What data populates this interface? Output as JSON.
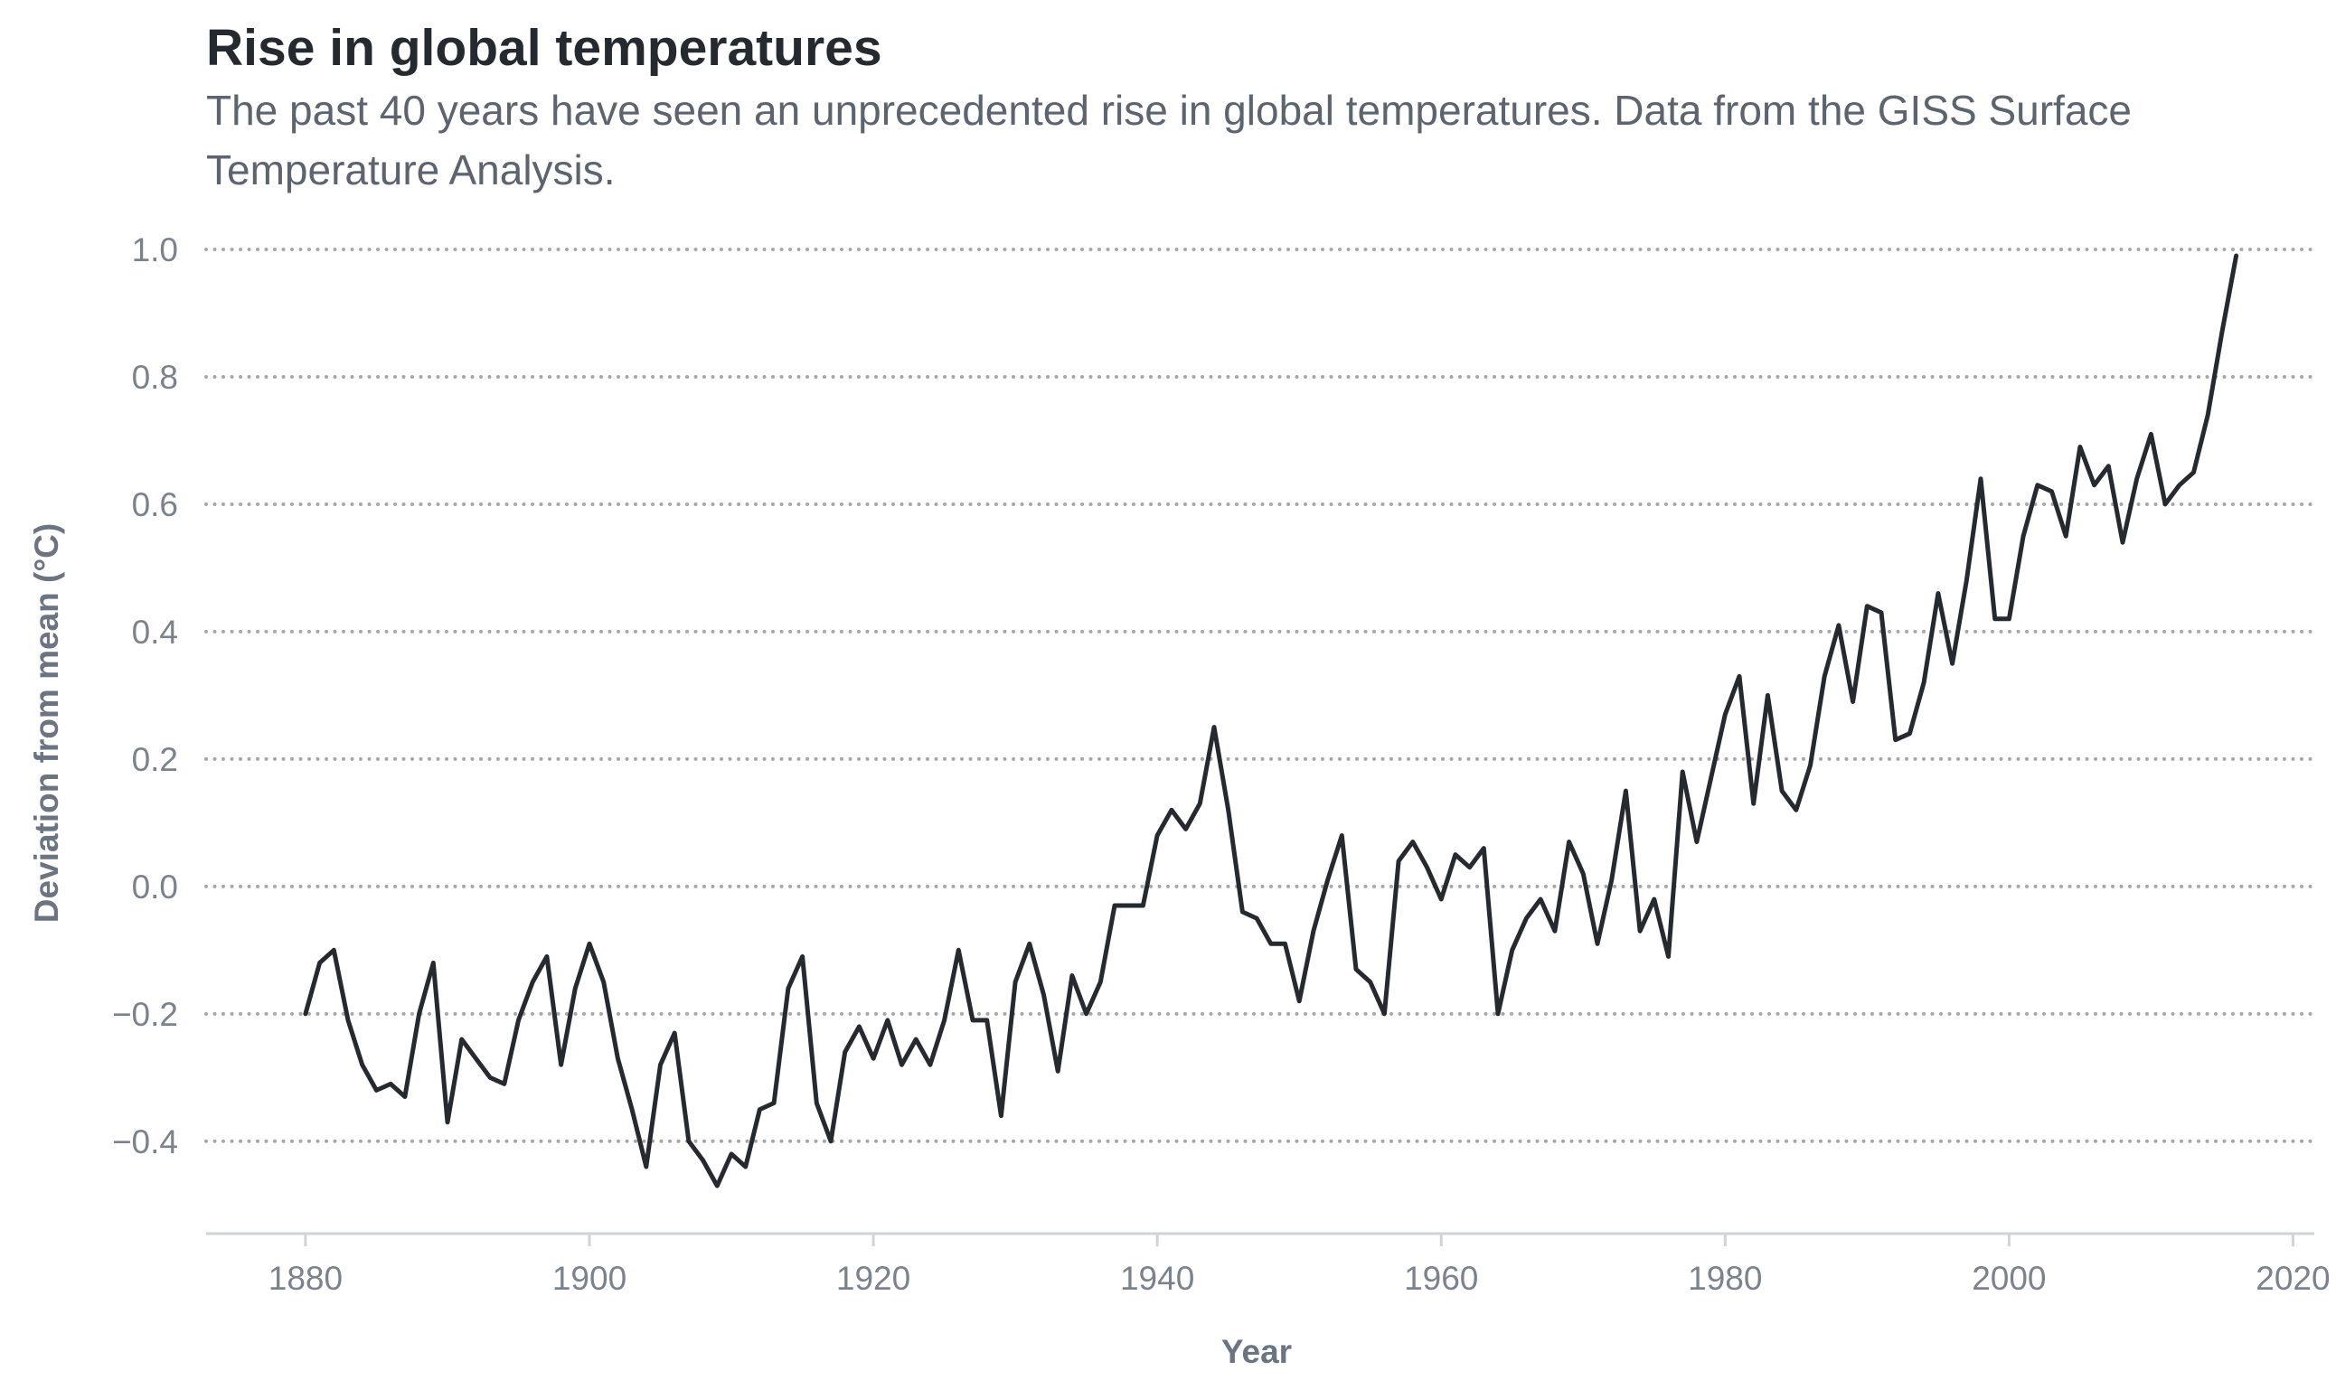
{
  "colors": {
    "line": "#252a31",
    "title": "#252a31",
    "subtitle": "#5c6470",
    "tick": "#7a828e",
    "axis_label": "#6b7480",
    "grid": "#a7a7a7",
    "axis": "#cfd4d8"
  },
  "chart_data": {
    "type": "line",
    "title": "Rise in global temperatures",
    "subtitle_lines": [
      "The past 40 years have seen an unprecedented rise in global temperatures. Data from the GISS Surface",
      "Temperature Analysis."
    ],
    "xlabel": "Year",
    "ylabel": "Deviation from mean (°C)",
    "xlim": [
      1873,
      2021.5
    ],
    "ylim": [
      -0.545,
      1.0
    ],
    "x_ticks": [
      1880,
      1900,
      1920,
      1940,
      1960,
      1980,
      2000,
      2020
    ],
    "x_tick_labels": [
      "1880",
      "1900",
      "1920",
      "1940",
      "1960",
      "1980",
      "2000",
      "2020"
    ],
    "y_ticks": [
      1.0,
      0.8,
      0.6,
      0.4,
      0.2,
      0.0,
      -0.2,
      -0.4
    ],
    "y_tick_labels": [
      "1.0",
      "0.8",
      "0.6",
      "0.4",
      "0.2",
      "0.0",
      "−0.2",
      "−0.4"
    ],
    "grid": "horizontal dotted",
    "x": [
      1880,
      1881,
      1882,
      1883,
      1884,
      1885,
      1886,
      1887,
      1888,
      1889,
      1890,
      1891,
      1892,
      1893,
      1894,
      1895,
      1896,
      1897,
      1898,
      1899,
      1900,
      1901,
      1902,
      1903,
      1904,
      1905,
      1906,
      1907,
      1908,
      1909,
      1910,
      1911,
      1912,
      1913,
      1914,
      1915,
      1916,
      1917,
      1918,
      1919,
      1920,
      1921,
      1922,
      1923,
      1924,
      1925,
      1926,
      1927,
      1928,
      1929,
      1930,
      1931,
      1932,
      1933,
      1934,
      1935,
      1936,
      1937,
      1938,
      1939,
      1940,
      1941,
      1942,
      1943,
      1944,
      1945,
      1946,
      1947,
      1948,
      1949,
      1950,
      1951,
      1952,
      1953,
      1954,
      1955,
      1956,
      1957,
      1958,
      1959,
      1960,
      1961,
      1962,
      1963,
      1964,
      1965,
      1966,
      1967,
      1968,
      1969,
      1970,
      1971,
      1972,
      1973,
      1974,
      1975,
      1976,
      1977,
      1978,
      1979,
      1980,
      1981,
      1982,
      1983,
      1984,
      1985,
      1986,
      1987,
      1988,
      1989,
      1990,
      1991,
      1992,
      1993,
      1994,
      1995,
      1996,
      1997,
      1998,
      1999,
      2000,
      2001,
      2002,
      2003,
      2004,
      2005,
      2006,
      2007,
      2008,
      2009,
      2010,
      2011,
      2012,
      2013,
      2014,
      2015,
      2016
    ],
    "y": [
      -0.2,
      -0.12,
      -0.1,
      -0.21,
      -0.28,
      -0.32,
      -0.31,
      -0.33,
      -0.2,
      -0.12,
      -0.37,
      -0.24,
      -0.27,
      -0.3,
      -0.31,
      -0.21,
      -0.15,
      -0.11,
      -0.28,
      -0.16,
      -0.09,
      -0.15,
      -0.27,
      -0.35,
      -0.44,
      -0.28,
      -0.23,
      -0.4,
      -0.43,
      -0.47,
      -0.42,
      -0.44,
      -0.35,
      -0.34,
      -0.16,
      -0.11,
      -0.34,
      -0.4,
      -0.26,
      -0.22,
      -0.27,
      -0.21,
      -0.28,
      -0.24,
      -0.28,
      -0.21,
      -0.1,
      -0.21,
      -0.21,
      -0.36,
      -0.15,
      -0.09,
      -0.17,
      -0.29,
      -0.14,
      -0.2,
      -0.15,
      -0.03,
      -0.03,
      -0.03,
      0.08,
      0.12,
      0.09,
      0.13,
      0.25,
      0.12,
      -0.04,
      -0.05,
      -0.09,
      -0.09,
      -0.18,
      -0.07,
      0.01,
      0.08,
      -0.13,
      -0.15,
      -0.2,
      0.04,
      0.07,
      0.03,
      -0.02,
      0.05,
      0.03,
      0.06,
      -0.2,
      -0.1,
      -0.05,
      -0.02,
      -0.07,
      0.07,
      0.02,
      -0.09,
      0.01,
      0.15,
      -0.07,
      -0.02,
      -0.11,
      0.18,
      0.07,
      0.17,
      0.27,
      0.33,
      0.13,
      0.3,
      0.15,
      0.12,
      0.19,
      0.33,
      0.41,
      0.29,
      0.44,
      0.43,
      0.23,
      0.24,
      0.32,
      0.46,
      0.35,
      0.48,
      0.64,
      0.42,
      0.42,
      0.55,
      0.63,
      0.62,
      0.55,
      0.69,
      0.63,
      0.66,
      0.54,
      0.64,
      0.71,
      0.6,
      0.63,
      0.65,
      0.74,
      0.87,
      0.99
    ]
  }
}
